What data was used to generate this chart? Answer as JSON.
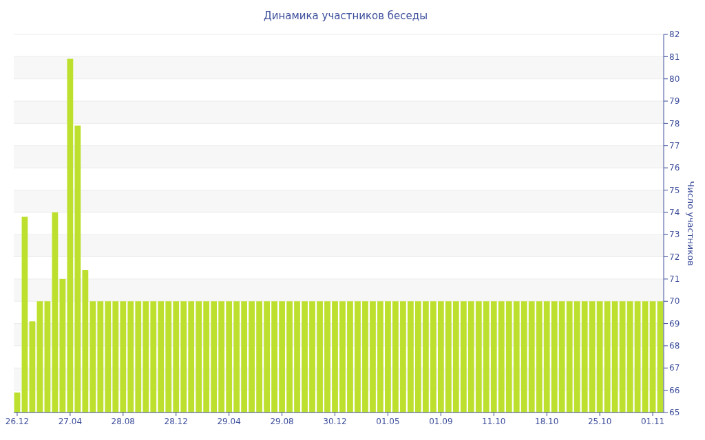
{
  "chart_data": {
    "type": "bar",
    "title": "Динамика участников беседы",
    "ylabel": "Число участников",
    "categories": [
      "26.12",
      null,
      null,
      null,
      null,
      null,
      null,
      "27.04",
      null,
      null,
      null,
      null,
      null,
      null,
      "28.08",
      null,
      null,
      null,
      null,
      null,
      null,
      "28.12",
      null,
      null,
      null,
      null,
      null,
      null,
      "29.04",
      null,
      null,
      null,
      null,
      null,
      null,
      "29.08",
      null,
      null,
      null,
      null,
      null,
      null,
      "30.12",
      null,
      null,
      null,
      null,
      null,
      null,
      "01.05",
      null,
      null,
      null,
      null,
      null,
      null,
      "01.09",
      null,
      null,
      null,
      null,
      null,
      null,
      "11.10",
      null,
      null,
      null,
      null,
      null,
      null,
      "18.10",
      null,
      null,
      null,
      null,
      null,
      null,
      "25.10",
      null,
      null,
      null,
      null,
      null,
      null,
      "01.11",
      null
    ],
    "values": [
      65.9,
      73.8,
      69.1,
      70,
      70,
      74,
      71,
      80.9,
      77.9,
      71.4,
      70,
      70,
      70,
      70,
      70,
      70,
      70,
      70,
      70,
      70,
      70,
      70,
      70,
      70,
      70,
      70,
      70,
      70,
      70,
      70,
      70,
      70,
      70,
      70,
      70,
      70,
      70,
      70,
      70,
      70,
      70,
      70,
      70,
      70,
      70,
      70,
      70,
      70,
      70,
      70,
      70,
      70,
      70,
      70,
      70,
      70,
      70,
      70,
      70,
      70,
      70,
      70,
      70,
      70,
      70,
      70,
      70,
      70,
      70,
      70,
      70,
      70,
      70,
      70,
      70,
      70,
      70,
      70,
      70,
      70,
      70,
      70,
      70,
      70,
      70,
      70
    ],
    "color": "#bde02f",
    "ylim": [
      65,
      82
    ],
    "yticks": [
      65,
      66,
      67,
      68,
      69,
      70,
      71,
      72,
      73,
      74,
      75,
      76,
      77,
      78,
      79,
      80,
      81,
      82
    ],
    "grid": "y"
  }
}
